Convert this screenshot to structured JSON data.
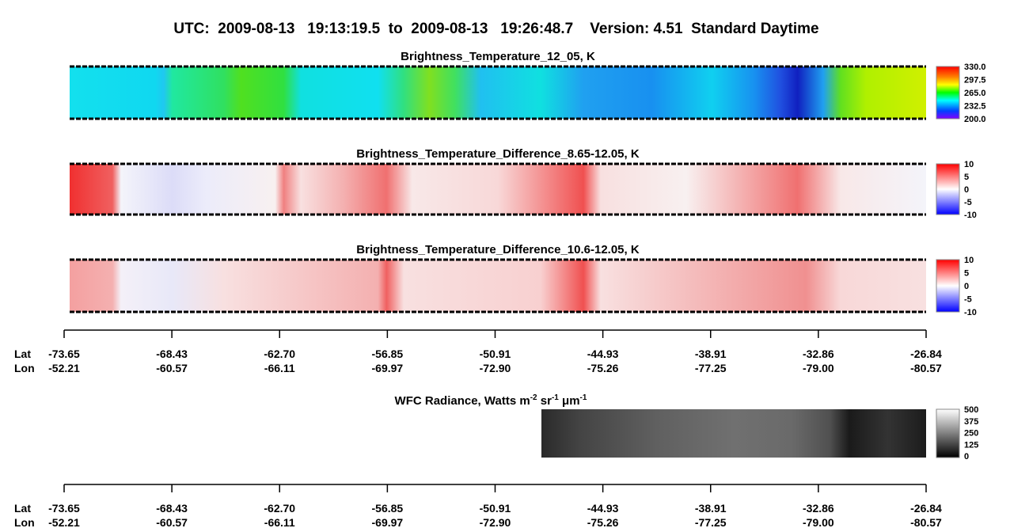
{
  "header": {
    "title": "UTC:  2009-08-13   19:13:19.5  to  2009-08-13   19:26:48.7    Version: 4.51  Standard Daytime"
  },
  "panels": [
    {
      "title": "Brightness_Temperature_12_05, K",
      "colorbar": [
        "330.0",
        "297.5",
        "265.0",
        "232.5",
        "200.0"
      ]
    },
    {
      "title": "Brightness_Temperature_Difference_8.65-12.05, K",
      "colorbar": [
        "10",
        "5",
        "0",
        "-5",
        "-10"
      ]
    },
    {
      "title": "Brightness_Temperature_Difference_10.6-12.05, K",
      "colorbar": [
        "10",
        "5",
        "0",
        "-5",
        "-10"
      ]
    }
  ],
  "wfc": {
    "title_parts": [
      "WFC Radiance, Watts m",
      "-2",
      " sr",
      "-1",
      " μm",
      "-1"
    ],
    "colorbar": [
      "500",
      "375",
      "250",
      "125",
      "0"
    ]
  },
  "axes": [
    {
      "lat_label": "Lat",
      "lon_label": "Lon",
      "lat": [
        "-73.65",
        "-68.43",
        "-62.70",
        "-56.85",
        "-50.91",
        "-44.93",
        "-38.91",
        "-32.86",
        "-26.84"
      ],
      "lon": [
        "-52.21",
        "-60.57",
        "-66.11",
        "-69.97",
        "-72.90",
        "-75.26",
        "-77.25",
        "-79.00",
        "-80.57"
      ]
    },
    {
      "lat_label": "Lat",
      "lon_label": "Lon",
      "lat": [
        "-73.65",
        "-68.43",
        "-62.70",
        "-56.85",
        "-50.91",
        "-44.93",
        "-38.91",
        "-32.86",
        "-26.84"
      ],
      "lon": [
        "-52.21",
        "-60.57",
        "-66.11",
        "-69.97",
        "-72.90",
        "-75.26",
        "-77.25",
        "-79.00",
        "-80.57"
      ]
    }
  ]
}
